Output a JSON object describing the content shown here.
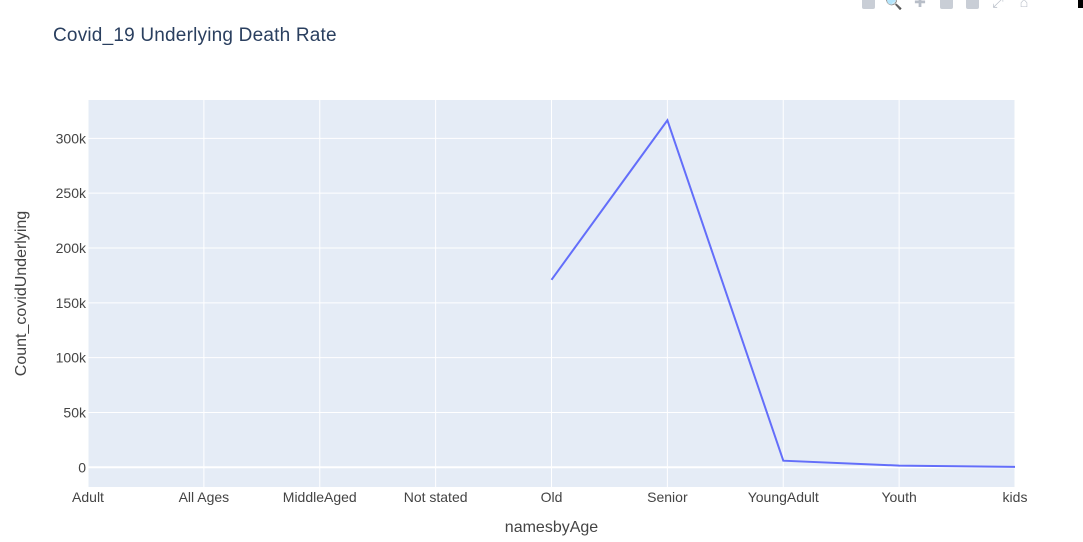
{
  "chart_data": {
    "type": "line",
    "title": "Covid_19 Underlying Death Rate",
    "xlabel": "namesbyAge",
    "ylabel": "Count_covidUnderlying",
    "categories": [
      "Adult",
      "All Ages",
      "MiddleAged",
      "Not stated",
      "Old",
      "Senior",
      "YoungAdult",
      "Youth",
      "kids"
    ],
    "values": [
      null,
      null,
      null,
      null,
      171000,
      316500,
      6000,
      1500,
      300
    ],
    "ylim": [
      -18000,
      335000
    ],
    "yticks": [
      0,
      50000,
      100000,
      150000,
      200000,
      250000,
      300000
    ],
    "ytick_labels": [
      "0",
      "50k",
      "100k",
      "150k",
      "200k",
      "250k",
      "300k"
    ],
    "grid": true,
    "line_color": "#636efa",
    "plot_bg": "#e5ecf6"
  },
  "modebar": {
    "icons": [
      "camera-icon",
      "zoom-icon",
      "pan-icon",
      "zoom-in-icon",
      "zoom-out-icon",
      "autoscale-icon",
      "home-icon"
    ]
  }
}
